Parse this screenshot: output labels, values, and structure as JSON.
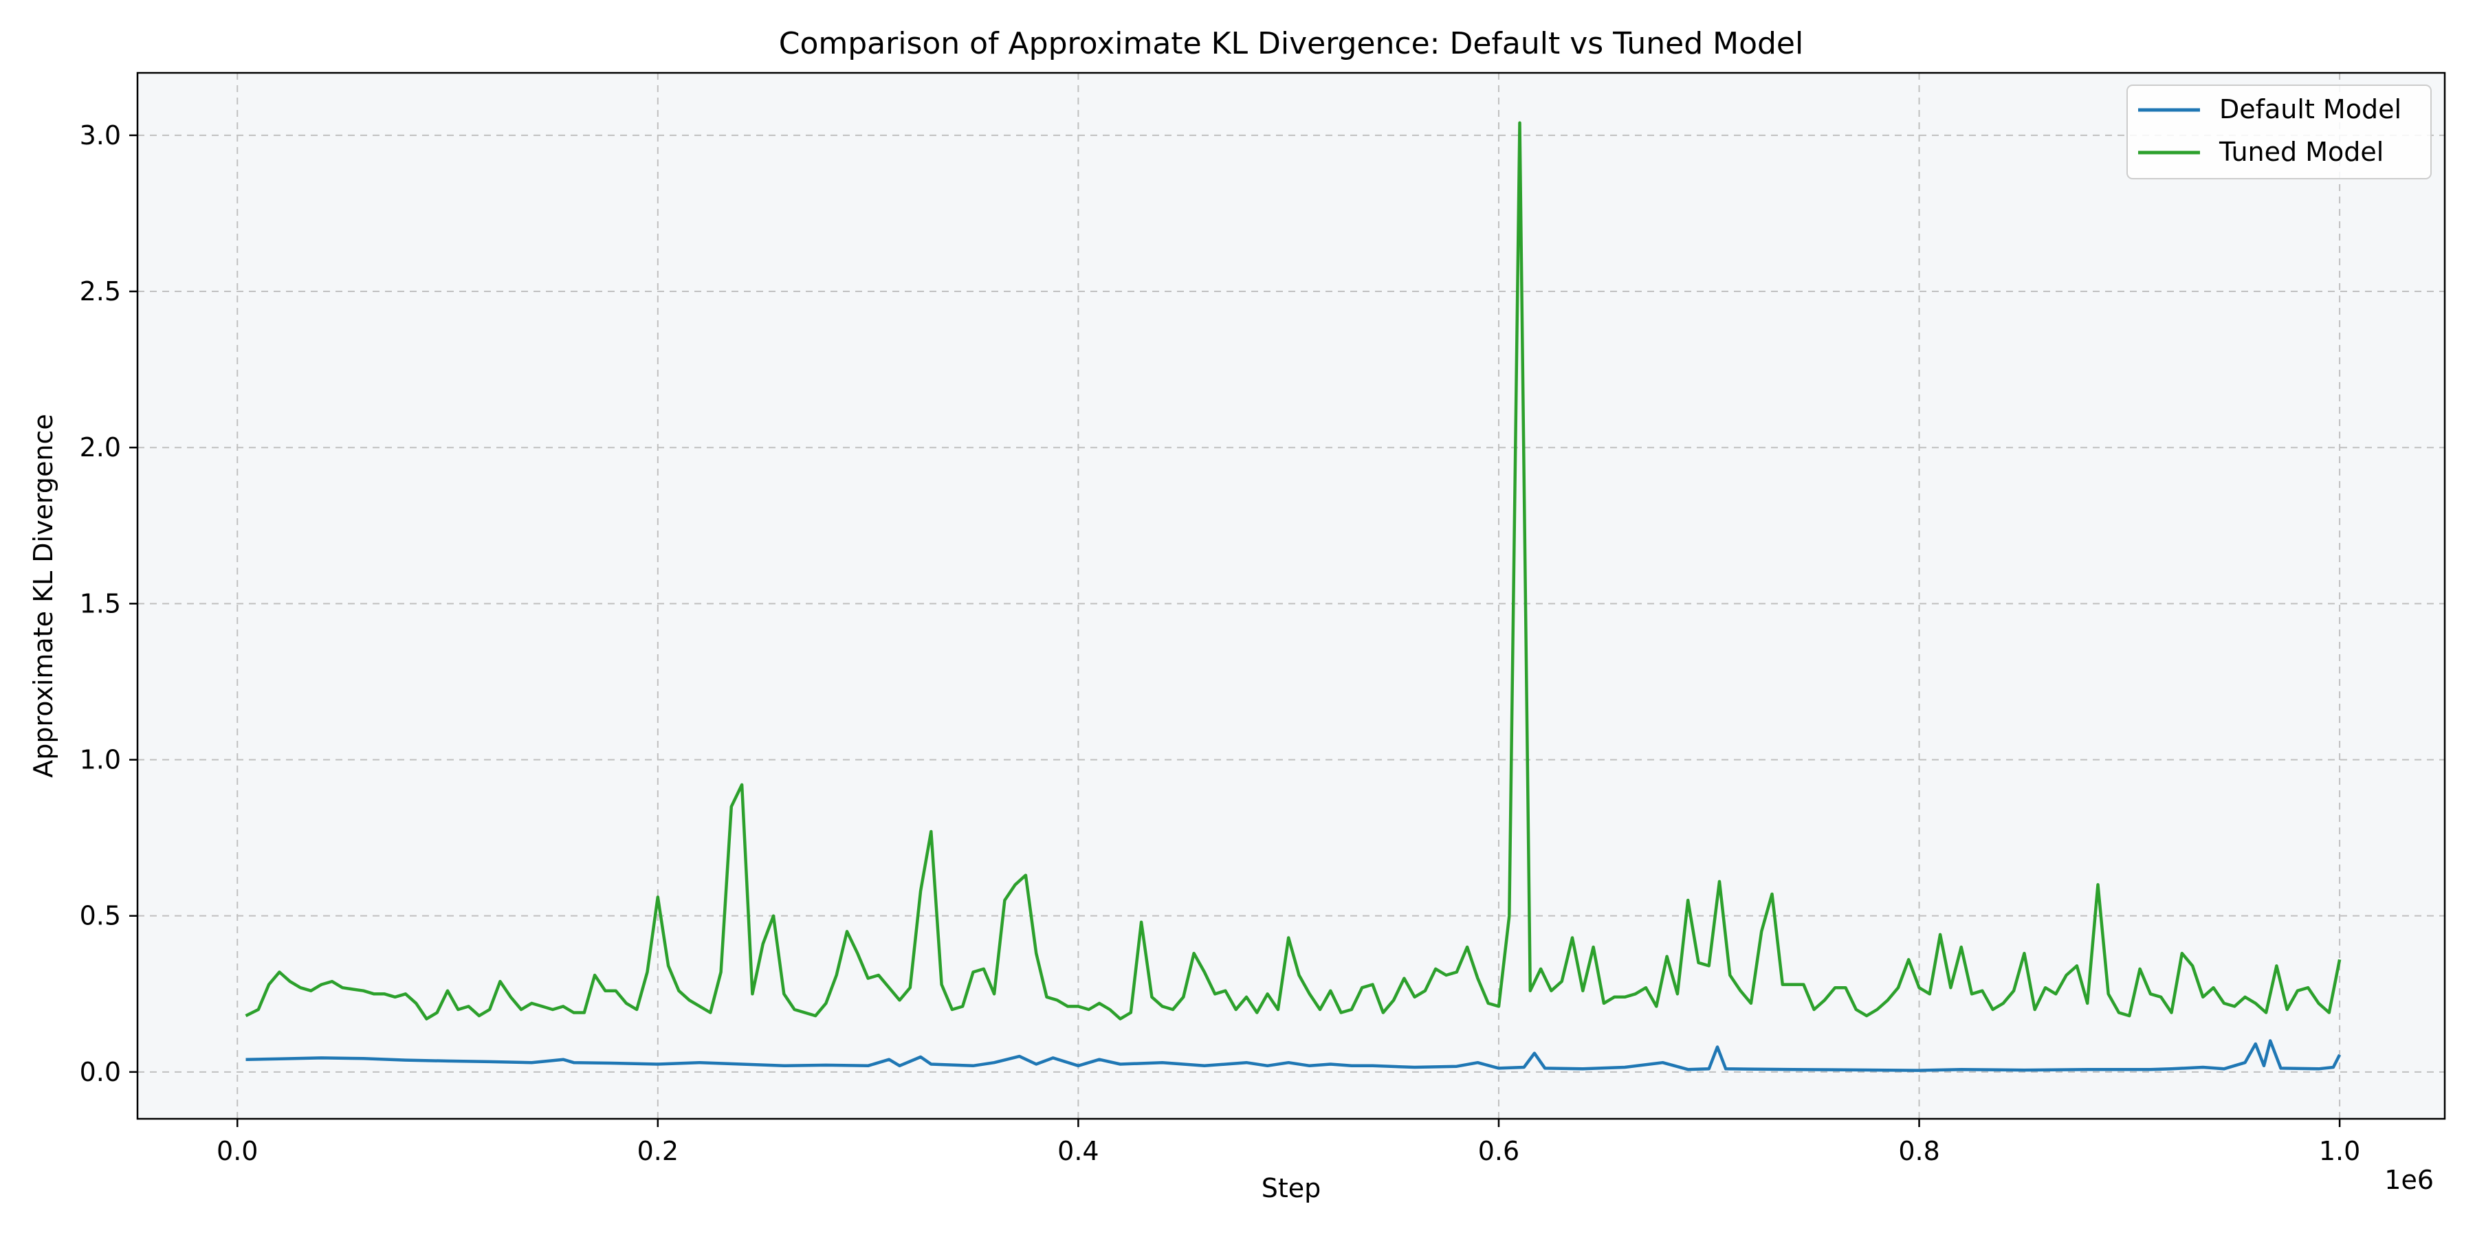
{
  "chart_data": {
    "type": "line",
    "title": "Comparison of Approximate KL Divergence: Default vs Tuned Model",
    "xlabel": "Step",
    "ylabel": "Approximate KL Divergence",
    "x_offset_text": "1e6",
    "xlim": [
      -47500,
      1050000
    ],
    "ylim": [
      -0.15,
      3.2
    ],
    "xticks": [
      0,
      200000,
      400000,
      600000,
      800000,
      1000000
    ],
    "xtick_labels": [
      "0.0",
      "0.2",
      "0.4",
      "0.6",
      "0.8",
      "1.0"
    ],
    "yticks": [
      0,
      0.5,
      1,
      1.5,
      2,
      2.5,
      3
    ],
    "ytick_labels": [
      "0.0",
      "0.5",
      "1.0",
      "1.5",
      "2.0",
      "2.5",
      "3.0"
    ],
    "grid": true,
    "legend_position": "top-right",
    "colors": {
      "plot_background": "#f5f7f9",
      "grid": "#c0c0c0",
      "default_series": "#1f77b4",
      "tuned_series": "#2ca02c"
    },
    "series": [
      {
        "name": "Default Model",
        "color": "#1f77b4",
        "points": [
          [
            4000,
            0.04
          ],
          [
            20000,
            0.042
          ],
          [
            40000,
            0.045
          ],
          [
            60000,
            0.043
          ],
          [
            80000,
            0.038
          ],
          [
            100000,
            0.035
          ],
          [
            120000,
            0.033
          ],
          [
            140000,
            0.03
          ],
          [
            155000,
            0.04
          ],
          [
            160000,
            0.03
          ],
          [
            180000,
            0.028
          ],
          [
            200000,
            0.025
          ],
          [
            220000,
            0.03
          ],
          [
            240000,
            0.025
          ],
          [
            260000,
            0.02
          ],
          [
            280000,
            0.022
          ],
          [
            300000,
            0.02
          ],
          [
            310000,
            0.04
          ],
          [
            315000,
            0.02
          ],
          [
            325000,
            0.048
          ],
          [
            330000,
            0.025
          ],
          [
            350000,
            0.02
          ],
          [
            360000,
            0.03
          ],
          [
            372000,
            0.05
          ],
          [
            380000,
            0.025
          ],
          [
            388000,
            0.045
          ],
          [
            400000,
            0.02
          ],
          [
            410000,
            0.04
          ],
          [
            420000,
            0.025
          ],
          [
            440000,
            0.03
          ],
          [
            460000,
            0.02
          ],
          [
            480000,
            0.03
          ],
          [
            490000,
            0.02
          ],
          [
            500000,
            0.03
          ],
          [
            510000,
            0.02
          ],
          [
            520000,
            0.025
          ],
          [
            530000,
            0.02
          ],
          [
            540000,
            0.02
          ],
          [
            560000,
            0.015
          ],
          [
            580000,
            0.018
          ],
          [
            590000,
            0.03
          ],
          [
            600000,
            0.012
          ],
          [
            612000,
            0.015
          ],
          [
            617000,
            0.06
          ],
          [
            622000,
            0.012
          ],
          [
            640000,
            0.01
          ],
          [
            660000,
            0.015
          ],
          [
            678000,
            0.03
          ],
          [
            690000,
            0.008
          ],
          [
            700000,
            0.01
          ],
          [
            704000,
            0.08
          ],
          [
            708000,
            0.01
          ],
          [
            740000,
            0.008
          ],
          [
            780000,
            0.006
          ],
          [
            800000,
            0.005
          ],
          [
            820000,
            0.008
          ],
          [
            850000,
            0.006
          ],
          [
            880000,
            0.008
          ],
          [
            910000,
            0.008
          ],
          [
            920000,
            0.01
          ],
          [
            935000,
            0.015
          ],
          [
            945000,
            0.01
          ],
          [
            955000,
            0.03
          ],
          [
            960000,
            0.09
          ],
          [
            964000,
            0.02
          ],
          [
            967000,
            0.1
          ],
          [
            972000,
            0.012
          ],
          [
            990000,
            0.01
          ],
          [
            997000,
            0.015
          ],
          [
            1000000,
            0.055
          ]
        ]
      },
      {
        "name": "Tuned Model",
        "color": "#2ca02c",
        "points": [
          [
            4000,
            0.18
          ],
          [
            10000,
            0.2
          ],
          [
            15000,
            0.28
          ],
          [
            20000,
            0.32
          ],
          [
            25000,
            0.29
          ],
          [
            30000,
            0.27
          ],
          [
            35000,
            0.26
          ],
          [
            40000,
            0.28
          ],
          [
            45000,
            0.29
          ],
          [
            50000,
            0.27
          ],
          [
            55000,
            0.265
          ],
          [
            60000,
            0.26
          ],
          [
            65000,
            0.25
          ],
          [
            70000,
            0.25
          ],
          [
            75000,
            0.24
          ],
          [
            80000,
            0.25
          ],
          [
            85000,
            0.22
          ],
          [
            90000,
            0.17
          ],
          [
            95000,
            0.19
          ],
          [
            100000,
            0.26
          ],
          [
            105000,
            0.2
          ],
          [
            110000,
            0.21
          ],
          [
            115000,
            0.18
          ],
          [
            120000,
            0.2
          ],
          [
            125000,
            0.29
          ],
          [
            130000,
            0.24
          ],
          [
            135000,
            0.2
          ],
          [
            140000,
            0.22
          ],
          [
            145000,
            0.21
          ],
          [
            150000,
            0.2
          ],
          [
            155000,
            0.21
          ],
          [
            160000,
            0.19
          ],
          [
            165000,
            0.19
          ],
          [
            170000,
            0.31
          ],
          [
            175000,
            0.26
          ],
          [
            180000,
            0.26
          ],
          [
            185000,
            0.22
          ],
          [
            190000,
            0.2
          ],
          [
            195000,
            0.32
          ],
          [
            200000,
            0.56
          ],
          [
            205000,
            0.34
          ],
          [
            210000,
            0.26
          ],
          [
            215000,
            0.23
          ],
          [
            220000,
            0.21
          ],
          [
            225000,
            0.19
          ],
          [
            230000,
            0.32
          ],
          [
            235000,
            0.85
          ],
          [
            240000,
            0.92
          ],
          [
            245000,
            0.25
          ],
          [
            250000,
            0.41
          ],
          [
            255000,
            0.5
          ],
          [
            260000,
            0.25
          ],
          [
            265000,
            0.2
          ],
          [
            275000,
            0.18
          ],
          [
            280000,
            0.22
          ],
          [
            285000,
            0.31
          ],
          [
            290000,
            0.45
          ],
          [
            295000,
            0.38
          ],
          [
            300000,
            0.3
          ],
          [
            305000,
            0.31
          ],
          [
            310000,
            0.27
          ],
          [
            315000,
            0.23
          ],
          [
            320000,
            0.27
          ],
          [
            325000,
            0.58
          ],
          [
            330000,
            0.77
          ],
          [
            335000,
            0.28
          ],
          [
            340000,
            0.2
          ],
          [
            345000,
            0.21
          ],
          [
            350000,
            0.32
          ],
          [
            355000,
            0.33
          ],
          [
            360000,
            0.25
          ],
          [
            365000,
            0.55
          ],
          [
            370000,
            0.6
          ],
          [
            375000,
            0.63
          ],
          [
            380000,
            0.38
          ],
          [
            385000,
            0.24
          ],
          [
            390000,
            0.23
          ],
          [
            395000,
            0.21
          ],
          [
            400000,
            0.21
          ],
          [
            405000,
            0.2
          ],
          [
            410000,
            0.22
          ],
          [
            415000,
            0.2
          ],
          [
            420000,
            0.17
          ],
          [
            425000,
            0.19
          ],
          [
            430000,
            0.48
          ],
          [
            435000,
            0.24
          ],
          [
            440000,
            0.21
          ],
          [
            445000,
            0.2
          ],
          [
            450000,
            0.24
          ],
          [
            455000,
            0.38
          ],
          [
            460000,
            0.32
          ],
          [
            465000,
            0.25
          ],
          [
            470000,
            0.26
          ],
          [
            475000,
            0.2
          ],
          [
            480000,
            0.24
          ],
          [
            485000,
            0.19
          ],
          [
            490000,
            0.25
          ],
          [
            495000,
            0.2
          ],
          [
            500000,
            0.43
          ],
          [
            505000,
            0.31
          ],
          [
            510000,
            0.25
          ],
          [
            515000,
            0.2
          ],
          [
            520000,
            0.26
          ],
          [
            525000,
            0.19
          ],
          [
            530000,
            0.2
          ],
          [
            535000,
            0.27
          ],
          [
            540000,
            0.28
          ],
          [
            545000,
            0.19
          ],
          [
            550000,
            0.23
          ],
          [
            555000,
            0.3
          ],
          [
            560000,
            0.24
          ],
          [
            565000,
            0.26
          ],
          [
            570000,
            0.33
          ],
          [
            575000,
            0.31
          ],
          [
            580000,
            0.32
          ],
          [
            585000,
            0.4
          ],
          [
            590000,
            0.3
          ],
          [
            595000,
            0.22
          ],
          [
            600000,
            0.21
          ],
          [
            605000,
            0.5
          ],
          [
            610000,
            3.04
          ],
          [
            615000,
            0.26
          ],
          [
            620000,
            0.33
          ],
          [
            625000,
            0.26
          ],
          [
            630000,
            0.29
          ],
          [
            635000,
            0.43
          ],
          [
            640000,
            0.26
          ],
          [
            645000,
            0.4
          ],
          [
            650000,
            0.22
          ],
          [
            655000,
            0.24
          ],
          [
            660000,
            0.24
          ],
          [
            665000,
            0.25
          ],
          [
            670000,
            0.27
          ],
          [
            675000,
            0.21
          ],
          [
            680000,
            0.37
          ],
          [
            685000,
            0.25
          ],
          [
            690000,
            0.55
          ],
          [
            695000,
            0.35
          ],
          [
            700000,
            0.34
          ],
          [
            705000,
            0.61
          ],
          [
            710000,
            0.31
          ],
          [
            715000,
            0.26
          ],
          [
            720000,
            0.22
          ],
          [
            725000,
            0.45
          ],
          [
            730000,
            0.57
          ],
          [
            735000,
            0.28
          ],
          [
            740000,
            0.28
          ],
          [
            745000,
            0.28
          ],
          [
            750000,
            0.2
          ],
          [
            755000,
            0.23
          ],
          [
            760000,
            0.27
          ],
          [
            765000,
            0.27
          ],
          [
            770000,
            0.2
          ],
          [
            775000,
            0.18
          ],
          [
            780000,
            0.2
          ],
          [
            785000,
            0.23
          ],
          [
            790000,
            0.27
          ],
          [
            795000,
            0.36
          ],
          [
            800000,
            0.27
          ],
          [
            805000,
            0.25
          ],
          [
            810000,
            0.44
          ],
          [
            815000,
            0.27
          ],
          [
            820000,
            0.4
          ],
          [
            825000,
            0.25
          ],
          [
            830000,
            0.26
          ],
          [
            835000,
            0.2
          ],
          [
            840000,
            0.22
          ],
          [
            845000,
            0.26
          ],
          [
            850000,
            0.38
          ],
          [
            855000,
            0.2
          ],
          [
            860000,
            0.27
          ],
          [
            865000,
            0.25
          ],
          [
            870000,
            0.31
          ],
          [
            875000,
            0.34
          ],
          [
            880000,
            0.22
          ],
          [
            885000,
            0.6
          ],
          [
            890000,
            0.25
          ],
          [
            895000,
            0.19
          ],
          [
            900000,
            0.18
          ],
          [
            905000,
            0.33
          ],
          [
            910000,
            0.25
          ],
          [
            915000,
            0.24
          ],
          [
            920000,
            0.19
          ],
          [
            925000,
            0.38
          ],
          [
            930000,
            0.34
          ],
          [
            935000,
            0.24
          ],
          [
            940000,
            0.27
          ],
          [
            945000,
            0.22
          ],
          [
            950000,
            0.21
          ],
          [
            955000,
            0.24
          ],
          [
            960000,
            0.22
          ],
          [
            965000,
            0.19
          ],
          [
            970000,
            0.34
          ],
          [
            975000,
            0.2
          ],
          [
            980000,
            0.26
          ],
          [
            985000,
            0.27
          ],
          [
            990000,
            0.22
          ],
          [
            995000,
            0.19
          ],
          [
            1000000,
            0.36
          ]
        ]
      }
    ]
  }
}
